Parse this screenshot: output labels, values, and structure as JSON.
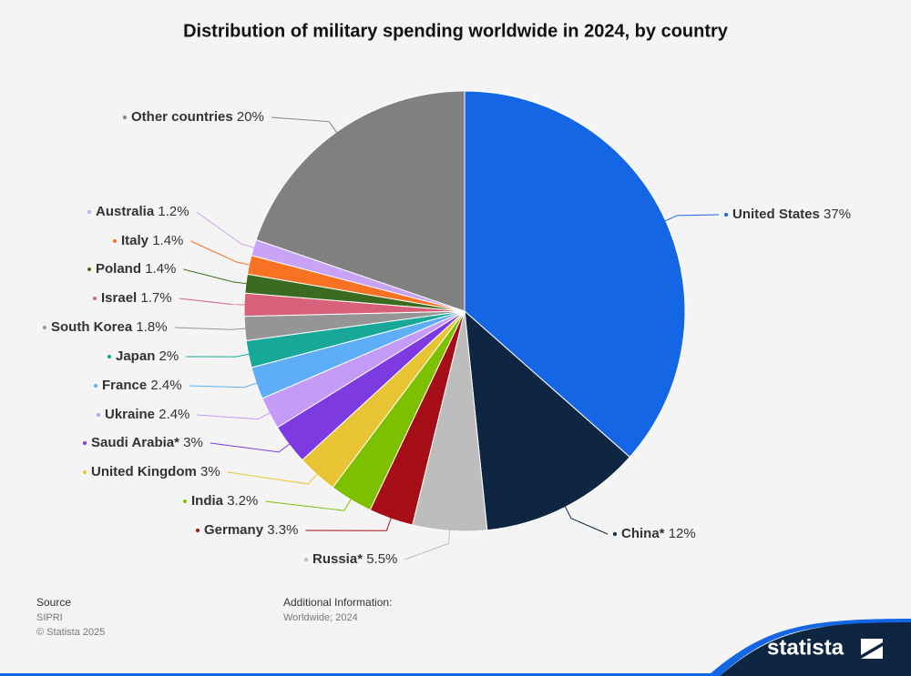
{
  "chart_data": {
    "type": "pie",
    "title": "Distribution of military spending worldwide in 2024, by country",
    "categories": [
      "United States",
      "China*",
      "Russia*",
      "Germany",
      "India",
      "United Kingdom",
      "Saudi Arabia*",
      "Ukraine",
      "France",
      "Japan",
      "South Korea",
      "Israel",
      "Poland",
      "Italy",
      "Australia",
      "Other countries"
    ],
    "values": [
      37,
      12,
      5.5,
      3.3,
      3.2,
      3,
      3,
      2.4,
      2.4,
      2,
      1.8,
      1.7,
      1.4,
      1.4,
      1.2,
      20
    ],
    "value_labels": [
      "37%",
      "12%",
      "5.5%",
      "3.3%",
      "3.2%",
      "3%",
      "3%",
      "2.4%",
      "2.4%",
      "2%",
      "1.8%",
      "1.7%",
      "1.4%",
      "1.4%",
      "1.2%",
      "20%"
    ],
    "colors": [
      "#1466e4",
      "#0f2643",
      "#bdbdbd",
      "#a50e16",
      "#7cc000",
      "#e8c434",
      "#7c3ae0",
      "#c49bf7",
      "#5eaef7",
      "#17a89a",
      "#959595",
      "#d8607a",
      "#3a6b21",
      "#f77222",
      "#c9a3f5",
      "#808080"
    ]
  },
  "footer": {
    "source_label": "Source",
    "source": "SIPRI",
    "copyright": "© Statista 2025",
    "info_label": "Additional Information:",
    "info": "Worldwide; 2024",
    "logo": "statista"
  }
}
